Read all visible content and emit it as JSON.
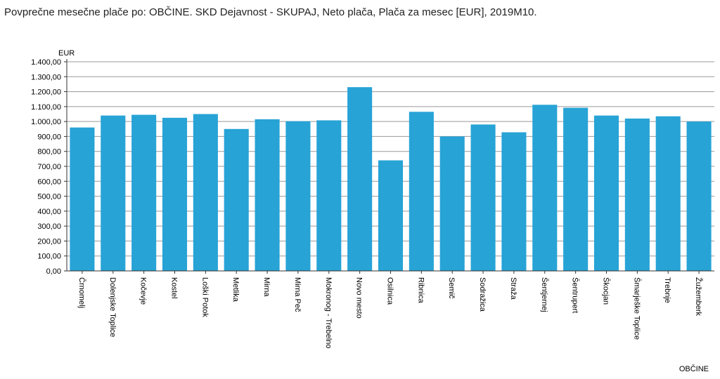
{
  "title": "Povprečne mesečne plače po: OBČINE. SKD Dejavnost - SKUPAJ, Neto plača, Plača za mesec [EUR], 2019M10.",
  "colors": {
    "bar": "#27a3d6",
    "grid": "#999999",
    "axis": "#333333"
  },
  "chart_data": {
    "type": "bar",
    "title": "Povprečne mesečne plače po: OBČINE. SKD Dejavnost - SKUPAJ, Neto plača, Plača za mesec [EUR], 2019M10.",
    "xlabel": "OBČINE",
    "ylabel": "EUR",
    "ylim": [
      0,
      1400
    ],
    "yticks": [
      0,
      100,
      200,
      300,
      400,
      500,
      600,
      700,
      800,
      900,
      1000,
      1100,
      1200,
      1300,
      1400
    ],
    "ytick_labels": [
      "0,00",
      "100,00",
      "200,00",
      "300,00",
      "400,00",
      "500,00",
      "600,00",
      "700,00",
      "800,00",
      "900,00",
      "1.000,00",
      "1.100,00",
      "1.200,00",
      "1.300,00",
      "1.400,00"
    ],
    "grid": true,
    "categories": [
      "Črnomelj",
      "Dolenjske Toplice",
      "Kočevje",
      "Kostel",
      "Loški Potok",
      "Metlika",
      "Mirna",
      "Mirna Peč",
      "Mokronog - Trebelno",
      "Novo mesto",
      "Osilnica",
      "Ribnica",
      "Semič",
      "Sodražica",
      "Straža",
      "Šentjernej",
      "Šentrupert",
      "Škocjan",
      "Šmarješke Toplice",
      "Trebnje",
      "Žužemberk"
    ],
    "values": [
      960,
      1040,
      1045,
      1025,
      1050,
      950,
      1015,
      1002,
      1008,
      1230,
      740,
      1065,
      900,
      980,
      928,
      1112,
      1092,
      1040,
      1020,
      1035,
      1000
    ]
  }
}
